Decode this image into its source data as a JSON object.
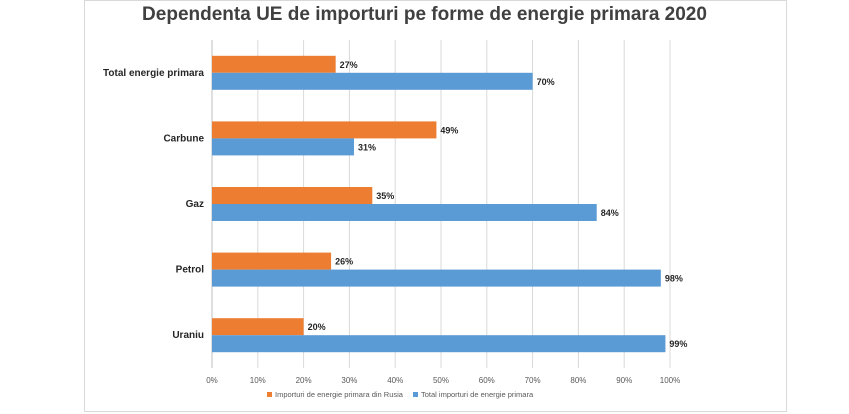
{
  "chart_data": {
    "type": "bar",
    "orientation": "horizontal",
    "title": "Dependenta UE de importuri pe forme de energie primara 2020",
    "categories": [
      "Total energie primara",
      "Carbune",
      "Gaz",
      "Petrol",
      "Uraniu"
    ],
    "series": [
      {
        "name": "Importuri de energie primara din Rusia",
        "values": [
          27,
          49,
          35,
          26,
          20
        ],
        "color": "#ed7d31"
      },
      {
        "name": "Total importuri de energie primara",
        "values": [
          70,
          31,
          84,
          98,
          99
        ],
        "color": "#5b9bd5"
      }
    ],
    "xlim": [
      0,
      100
    ],
    "x_ticks": [
      "0%",
      "10%",
      "20%",
      "30%",
      "40%",
      "50%",
      "60%",
      "70%",
      "80%",
      "90%",
      "100%"
    ],
    "value_suffix": "%",
    "grid": "vertical",
    "legend_position": "bottom"
  }
}
